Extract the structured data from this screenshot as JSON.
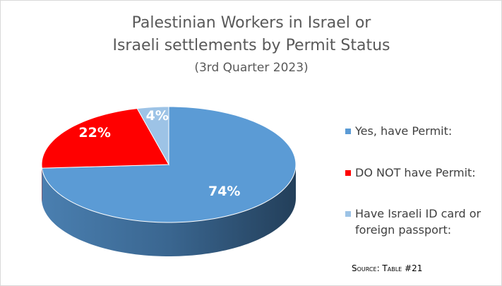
{
  "chart_data": {
    "type": "pie3d",
    "title": [
      "Palestinian Workers in Israel or",
      "Israeli settlements by Permit Status"
    ],
    "subtitle": "(3rd Quarter 2023)",
    "categories": [
      "Yes, have Permit:",
      "DO NOT have Permit:",
      "Have Israeli ID card or foreign passport:"
    ],
    "values": [
      74,
      22,
      4
    ],
    "value_labels": [
      "74%",
      "22%",
      "4%"
    ],
    "colors": [
      "#5b9bd5",
      "#ff0000",
      "#9dc3e6"
    ],
    "legend": "right",
    "source": "Source: Table #21"
  }
}
